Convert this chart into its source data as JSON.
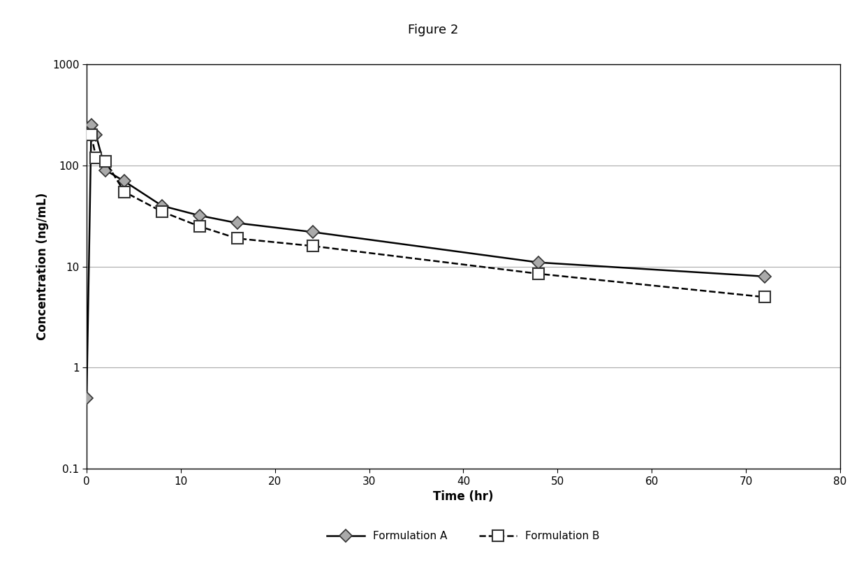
{
  "title": "Figure 2",
  "xlabel": "Time (hr)",
  "ylabel": "Concentration (ng/mL)",
  "xlim": [
    0,
    80
  ],
  "ylim": [
    0.1,
    1000
  ],
  "xticks": [
    0,
    10,
    20,
    30,
    40,
    50,
    60,
    70,
    80
  ],
  "formulation_A": {
    "x": [
      0,
      0.5,
      1,
      2,
      4,
      8,
      12,
      16,
      24,
      48,
      72
    ],
    "y": [
      0.5,
      250,
      200,
      90,
      70,
      40,
      32,
      27,
      22,
      11,
      8
    ]
  },
  "formulation_B": {
    "x": [
      0.5,
      1,
      2,
      4,
      8,
      12,
      16,
      24,
      48,
      72
    ],
    "y": [
      200,
      120,
      110,
      55,
      35,
      25,
      19,
      16,
      8.5,
      5
    ]
  },
  "line_color_A": "#000000",
  "line_color_B": "#000000",
  "marker_facecolor_A": "#aaaaaa",
  "marker_facecolor_B": "#ffffff",
  "marker_edgecolor_A": "#333333",
  "marker_edgecolor_B": "#333333",
  "legend_A": "Formulation A",
  "legend_B": "Formulation B",
  "background_color": "#ffffff",
  "plot_bg_color": "#ffffff",
  "grid_color": "#aaaaaa",
  "title_fontsize": 13,
  "label_fontsize": 12,
  "tick_fontsize": 11
}
